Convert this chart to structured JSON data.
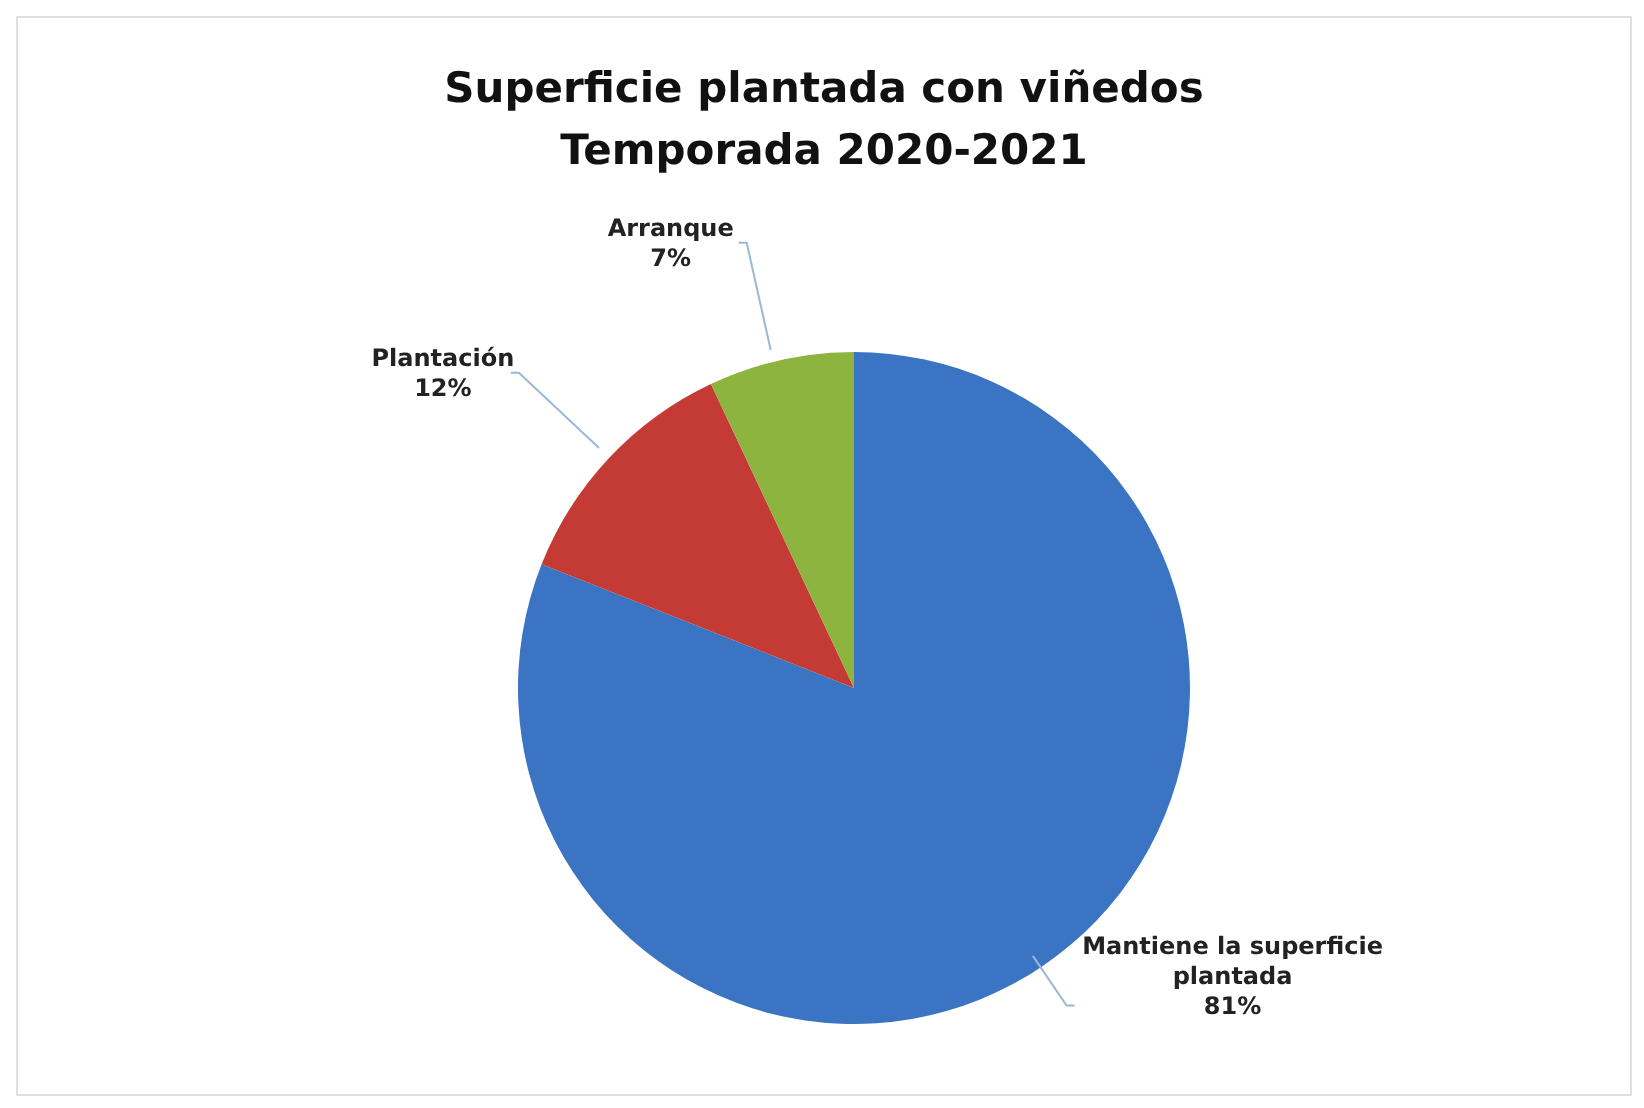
{
  "chart_data": {
    "type": "pie",
    "title": "Superficie plantada con viñedos",
    "subtitle": "Temporada 2020-2021",
    "categories": [
      "Mantiene la superficie plantada",
      "Plantación",
      "Arranque"
    ],
    "values": [
      81,
      12,
      7
    ],
    "colors": [
      "#3a74c2",
      "#c43a34",
      "#8cb43e"
    ],
    "value_labels": [
      "81%",
      "12%",
      "7%"
    ],
    "legend": false
  }
}
